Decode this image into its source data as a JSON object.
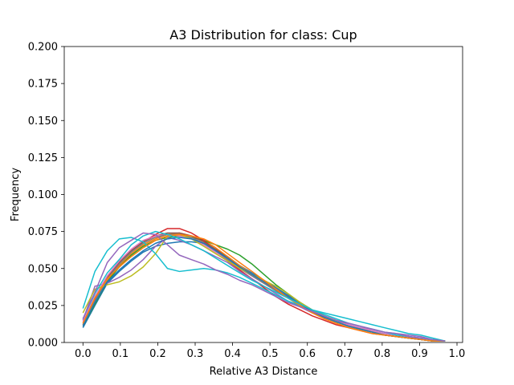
{
  "chart_data": {
    "type": "line",
    "title": "A3 Distribution for class: Cup",
    "xlabel": "Relative A3 Distance",
    "ylabel": "Frequency",
    "xlim": [
      -0.05,
      1.015
    ],
    "ylim": [
      0,
      0.2
    ],
    "xticks": [
      "0.0",
      "0.1",
      "0.2",
      "0.3",
      "0.4",
      "0.5",
      "0.6",
      "0.7",
      "0.8",
      "0.9",
      "1.0"
    ],
    "xtick_values": [
      0,
      0.1,
      0.2,
      0.3,
      0.4,
      0.5,
      0.6,
      0.7,
      0.8,
      0.9,
      1.0
    ],
    "yticks": [
      "0.000",
      "0.025",
      "0.050",
      "0.075",
      "0.100",
      "0.125",
      "0.150",
      "0.175",
      "0.200"
    ],
    "ytick_values": [
      0,
      0.025,
      0.05,
      0.075,
      0.1,
      0.125,
      0.15,
      0.175,
      0.2
    ],
    "grid": false,
    "legend": "none",
    "x": [
      0.0,
      0.032,
      0.065,
      0.097,
      0.129,
      0.161,
      0.194,
      0.226,
      0.258,
      0.29,
      0.323,
      0.355,
      0.387,
      0.419,
      0.452,
      0.484,
      0.516,
      0.548,
      0.581,
      0.613,
      0.645,
      0.677,
      0.71,
      0.742,
      0.774,
      0.806,
      0.839,
      0.871,
      0.903,
      0.935,
      0.968
    ],
    "series": [
      {
        "color": "#1f77b4",
        "values": [
          0.01,
          0.025,
          0.04,
          0.048,
          0.055,
          0.061,
          0.065,
          0.067,
          0.068,
          0.068,
          0.067,
          0.063,
          0.058,
          0.052,
          0.047,
          0.042,
          0.037,
          0.032,
          0.027,
          0.022,
          0.018,
          0.015,
          0.012,
          0.01,
          0.008,
          0.006,
          0.005,
          0.004,
          0.003,
          0.002,
          0.001
        ]
      },
      {
        "color": "#ff7f0e",
        "values": [
          0.012,
          0.028,
          0.042,
          0.052,
          0.06,
          0.066,
          0.07,
          0.073,
          0.074,
          0.072,
          0.069,
          0.064,
          0.058,
          0.052,
          0.046,
          0.041,
          0.036,
          0.031,
          0.026,
          0.021,
          0.017,
          0.014,
          0.011,
          0.009,
          0.007,
          0.005,
          0.004,
          0.003,
          0.002,
          0.001,
          0.001
        ]
      },
      {
        "color": "#2ca02c",
        "values": [
          0.011,
          0.026,
          0.041,
          0.051,
          0.059,
          0.065,
          0.069,
          0.071,
          0.072,
          0.071,
          0.069,
          0.066,
          0.063,
          0.059,
          0.053,
          0.046,
          0.039,
          0.033,
          0.027,
          0.022,
          0.018,
          0.014,
          0.011,
          0.009,
          0.007,
          0.005,
          0.004,
          0.003,
          0.002,
          0.001,
          0.001
        ]
      },
      {
        "color": "#d62728",
        "values": [
          0.012,
          0.029,
          0.044,
          0.054,
          0.062,
          0.068,
          0.073,
          0.077,
          0.077,
          0.074,
          0.069,
          0.062,
          0.055,
          0.049,
          0.043,
          0.037,
          0.031,
          0.026,
          0.022,
          0.018,
          0.015,
          0.012,
          0.01,
          0.008,
          0.006,
          0.005,
          0.004,
          0.003,
          0.002,
          0.001,
          0.001
        ]
      },
      {
        "color": "#9467bd",
        "values": [
          0.015,
          0.038,
          0.04,
          0.044,
          0.049,
          0.056,
          0.065,
          0.071,
          0.069,
          0.066,
          0.062,
          0.058,
          0.054,
          0.048,
          0.043,
          0.038,
          0.033,
          0.028,
          0.024,
          0.02,
          0.017,
          0.014,
          0.012,
          0.01,
          0.009,
          0.007,
          0.006,
          0.005,
          0.004,
          0.002,
          0.001
        ]
      },
      {
        "color": "#8c564b",
        "values": [
          0.013,
          0.03,
          0.044,
          0.054,
          0.062,
          0.068,
          0.072,
          0.074,
          0.074,
          0.072,
          0.068,
          0.063,
          0.057,
          0.051,
          0.045,
          0.04,
          0.035,
          0.03,
          0.025,
          0.021,
          0.017,
          0.014,
          0.011,
          0.009,
          0.007,
          0.005,
          0.004,
          0.003,
          0.002,
          0.001,
          0.001
        ]
      },
      {
        "color": "#e377c2",
        "values": [
          0.014,
          0.031,
          0.045,
          0.055,
          0.063,
          0.069,
          0.072,
          0.073,
          0.072,
          0.07,
          0.066,
          0.061,
          0.056,
          0.05,
          0.045,
          0.04,
          0.035,
          0.03,
          0.025,
          0.021,
          0.017,
          0.014,
          0.012,
          0.01,
          0.008,
          0.006,
          0.005,
          0.004,
          0.003,
          0.002,
          0.001
        ]
      },
      {
        "color": "#7f7f7f",
        "values": [
          0.012,
          0.028,
          0.043,
          0.053,
          0.061,
          0.067,
          0.071,
          0.073,
          0.073,
          0.071,
          0.067,
          0.062,
          0.056,
          0.05,
          0.045,
          0.04,
          0.035,
          0.03,
          0.025,
          0.021,
          0.017,
          0.014,
          0.011,
          0.009,
          0.007,
          0.005,
          0.004,
          0.003,
          0.002,
          0.001,
          0.001
        ]
      },
      {
        "color": "#bcbd22",
        "values": [
          0.02,
          0.036,
          0.039,
          0.041,
          0.045,
          0.051,
          0.06,
          0.072,
          0.073,
          0.07,
          0.065,
          0.06,
          0.055,
          0.05,
          0.046,
          0.042,
          0.038,
          0.033,
          0.027,
          0.022,
          0.018,
          0.014,
          0.011,
          0.009,
          0.007,
          0.005,
          0.004,
          0.003,
          0.002,
          0.001,
          0.001
        ]
      },
      {
        "color": "#17becf",
        "values": [
          0.023,
          0.048,
          0.062,
          0.07,
          0.071,
          0.068,
          0.06,
          0.05,
          0.048,
          0.049,
          0.05,
          0.049,
          0.047,
          0.044,
          0.04,
          0.036,
          0.032,
          0.028,
          0.025,
          0.022,
          0.02,
          0.018,
          0.016,
          0.014,
          0.012,
          0.01,
          0.008,
          0.006,
          0.005,
          0.003,
          0.001
        ]
      },
      {
        "color": "#1f77b4",
        "values": [
          0.011,
          0.027,
          0.041,
          0.049,
          0.056,
          0.062,
          0.067,
          0.07,
          0.071,
          0.07,
          0.067,
          0.062,
          0.057,
          0.051,
          0.046,
          0.041,
          0.036,
          0.031,
          0.026,
          0.021,
          0.017,
          0.014,
          0.011,
          0.009,
          0.007,
          0.005,
          0.004,
          0.003,
          0.002,
          0.001,
          0.001
        ]
      },
      {
        "color": "#ff7f0e",
        "values": [
          0.013,
          0.03,
          0.043,
          0.051,
          0.058,
          0.064,
          0.069,
          0.072,
          0.073,
          0.072,
          0.07,
          0.066,
          0.06,
          0.054,
          0.048,
          0.042,
          0.036,
          0.03,
          0.025,
          0.02,
          0.016,
          0.013,
          0.01,
          0.008,
          0.006,
          0.005,
          0.004,
          0.003,
          0.002,
          0.001,
          0.001
        ]
      },
      {
        "color": "#17becf",
        "values": [
          0.016,
          0.033,
          0.047,
          0.056,
          0.066,
          0.072,
          0.075,
          0.073,
          0.07,
          0.066,
          0.062,
          0.057,
          0.052,
          0.047,
          0.042,
          0.038,
          0.034,
          0.03,
          0.026,
          0.022,
          0.019,
          0.016,
          0.013,
          0.011,
          0.009,
          0.007,
          0.005,
          0.004,
          0.003,
          0.002,
          0.001
        ]
      },
      {
        "color": "#9467bd",
        "values": [
          0.016,
          0.034,
          0.054,
          0.064,
          0.069,
          0.074,
          0.073,
          0.066,
          0.059,
          0.056,
          0.053,
          0.049,
          0.046,
          0.042,
          0.039,
          0.035,
          0.031,
          0.027,
          0.024,
          0.021,
          0.018,
          0.015,
          0.013,
          0.011,
          0.009,
          0.007,
          0.006,
          0.004,
          0.003,
          0.002,
          0.001
        ]
      }
    ]
  }
}
